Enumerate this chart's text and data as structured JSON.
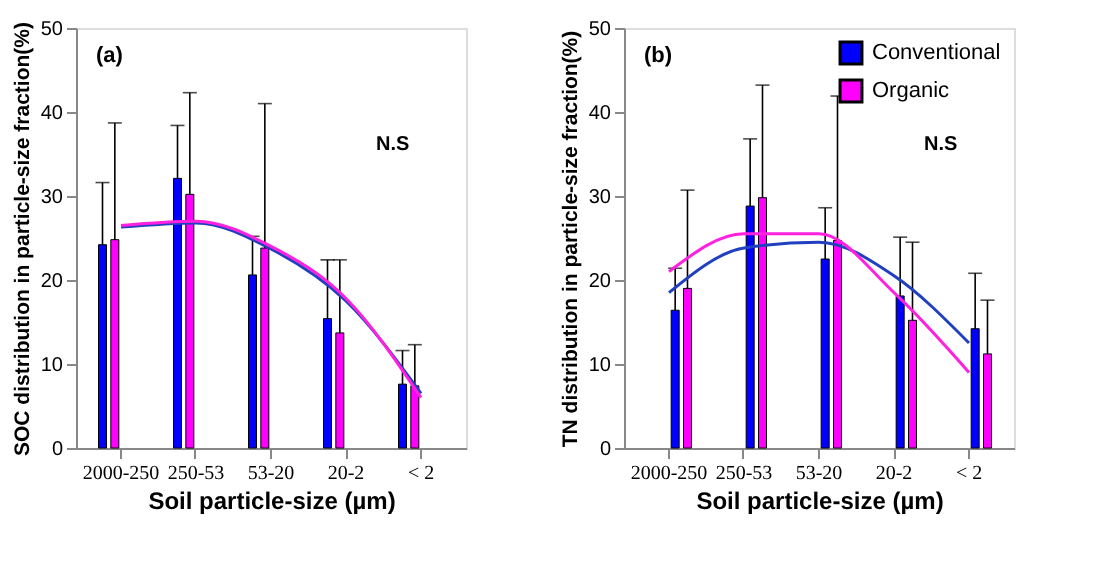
{
  "chart_data": [
    {
      "type": "bar",
      "categories": [
        "2000-250",
        "250-53",
        "53-20",
        "20-2",
        "< 2"
      ],
      "xlabel": "Soil particle-size (µm)",
      "ylabel": "SOC distribution in particle-size fraction(%)",
      "ylim": [
        0,
        50
      ],
      "yticks": [
        0,
        10,
        20,
        30,
        40,
        50
      ],
      "grid": false,
      "legend": false,
      "annotations": [
        "(a)",
        "N.S"
      ],
      "series": [
        {
          "color": "#0000ff",
          "values": [
            24.2,
            32.1,
            20.6,
            15.4,
            7.6
          ],
          "errors": [
            [
              24.2,
              31.6
            ],
            [
              32.1,
              38.4
            ],
            [
              20.6,
              25.2
            ],
            [
              15.4,
              22.4
            ],
            [
              7.6,
              11.6
            ]
          ]
        },
        {
          "color": "#ff00ff",
          "values": [
            24.8,
            30.2,
            23.8,
            13.7,
            7.4
          ],
          "errors": [
            [
              24.8,
              38.7
            ],
            [
              30.2,
              42.3
            ],
            [
              23.8,
              41.0
            ],
            [
              13.7,
              22.4
            ],
            [
              7.4,
              12.3
            ]
          ]
        },
        {
          "type": "line",
          "color": "#2040c0",
          "x": [
            "2000-250",
            "250-53",
            "53-20",
            "20-2",
            "< 2"
          ],
          "values": [
            26.3,
            26.8,
            23.7,
            17.5,
            6.5
          ]
        },
        {
          "type": "line",
          "color": "#ff20e0",
          "x": [
            "2000-250",
            "250-53",
            "53-20",
            "20-2",
            "< 2"
          ],
          "values": [
            26.5,
            27.0,
            24.0,
            17.8,
            6.0
          ]
        }
      ]
    },
    {
      "type": "bar",
      "categories": [
        "2000-250",
        "250-53",
        "53-20",
        "20-2",
        "< 2"
      ],
      "xlabel": "Soil particle-size (µm)",
      "ylabel": "TN distribution in particle-size fraction(%)",
      "ylim": [
        0,
        50
      ],
      "yticks": [
        0,
        10,
        20,
        30,
        40,
        50
      ],
      "grid": false,
      "legend": "top right",
      "annotations": [
        "(b)",
        "N.S"
      ],
      "series": [
        {
          "name": "Conventional",
          "color": "#0000ff",
          "values": [
            16.4,
            28.8,
            22.5,
            18.1,
            14.2
          ],
          "errors": [
            [
              16.4,
              21.4
            ],
            [
              28.8,
              36.8
            ],
            [
              22.5,
              28.6
            ],
            [
              18.1,
              25.1
            ],
            [
              14.2,
              20.8
            ]
          ]
        },
        {
          "name": "Organic",
          "color": "#ff00ff",
          "values": [
            19.0,
            29.8,
            24.7,
            15.2,
            11.2
          ],
          "errors": [
            [
              19.0,
              30.7
            ],
            [
              29.8,
              43.2
            ],
            [
              24.7,
              41.9
            ],
            [
              15.2,
              24.5
            ],
            [
              11.2,
              17.6
            ]
          ]
        },
        {
          "type": "line",
          "color": "#2040c0",
          "x": [
            "2000-250",
            "250-53",
            "53-20",
            "20-2",
            "< 2"
          ],
          "values": [
            18.5,
            23.8,
            24.5,
            20.5,
            12.5
          ]
        },
        {
          "type": "line",
          "color": "#ff20e0",
          "x": [
            "2000-250",
            "250-53",
            "53-20",
            "20-2",
            "< 2"
          ],
          "values": [
            21.0,
            25.5,
            25.5,
            18.5,
            9.0
          ]
        }
      ]
    }
  ]
}
